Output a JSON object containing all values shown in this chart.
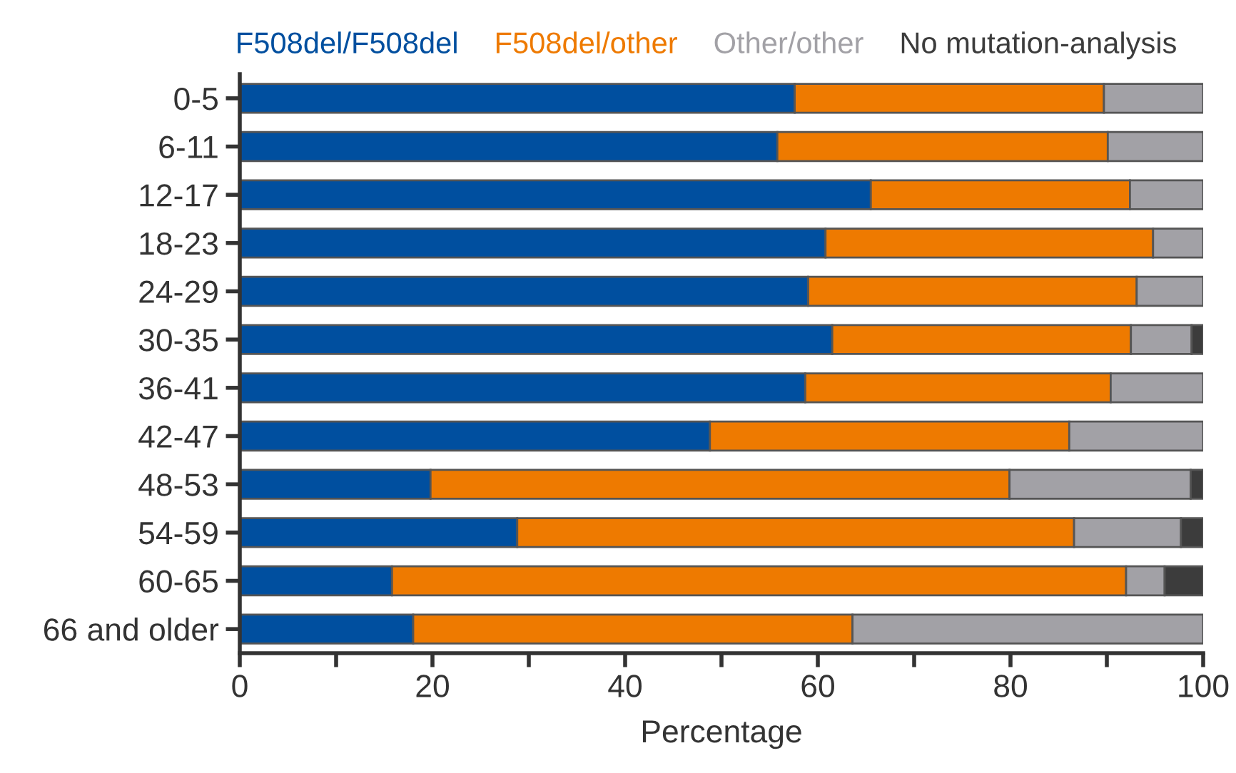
{
  "chart_data": {
    "type": "bar",
    "orientation": "horizontal",
    "stacked": true,
    "xlabel": "Percentage",
    "categories": [
      "0-5",
      "6-11",
      "12-17",
      "18-23",
      "24-29",
      "30-35",
      "36-41",
      "42-47",
      "48-53",
      "54-59",
      "60-65",
      "66 and older"
    ],
    "series": [
      {
        "name": "F508del/F508del",
        "color": "#004f9f",
        "values": [
          57.6,
          55.8,
          65.5,
          60.8,
          59.0,
          61.5,
          58.7,
          48.8,
          19.8,
          28.8,
          15.8,
          18.0
        ]
      },
      {
        "name": "F508del/other",
        "color": "#ee7a00",
        "values": [
          32.1,
          34.3,
          26.9,
          34.0,
          34.1,
          31.0,
          31.7,
          37.3,
          60.1,
          57.8,
          76.2,
          45.6
        ]
      },
      {
        "name": "Other/other",
        "color": "#a2a1a6",
        "values": [
          10.3,
          9.9,
          7.6,
          5.2,
          6.9,
          6.3,
          9.6,
          13.9,
          18.8,
          11.1,
          4.0,
          36.4
        ]
      },
      {
        "name": "No mutation-analysis",
        "color": "#3c3c3c",
        "values": [
          null,
          null,
          null,
          null,
          null,
          1.2,
          null,
          null,
          1.3,
          2.3,
          4.0,
          null
        ]
      }
    ],
    "xlim": [
      0,
      100
    ],
    "xticks": [
      0,
      {
        "value": 10,
        "label": null
      },
      20,
      {
        "value": 30,
        "label": null
      },
      40,
      {
        "value": 50,
        "label": null
      },
      60,
      {
        "value": 70,
        "label": null
      },
      80,
      {
        "value": 90,
        "label": null
      },
      100
    ],
    "grid": false,
    "legend": "top"
  }
}
